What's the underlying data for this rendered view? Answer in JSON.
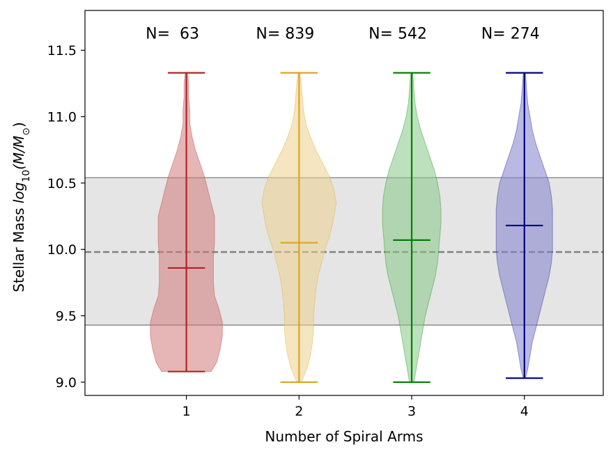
{
  "chart_data": {
    "type": "violin",
    "xlabel": "Number of Spiral Arms",
    "ylabel_prefix": "Stellar Mass ",
    "ylabel_math": "log",
    "ylabel_sub": "10",
    "ylabel_suffix": "(M/M",
    "ylabel_sun": "⊙",
    "ylabel_close": ")",
    "xlim": [
      0.1,
      4.7
    ],
    "ylim": [
      8.9,
      11.8
    ],
    "xticks": [
      1,
      2,
      3,
      4
    ],
    "xtick_labels": [
      "1",
      "2",
      "3",
      "4"
    ],
    "yticks": [
      9.0,
      9.5,
      10.0,
      10.5,
      11.0,
      11.5
    ],
    "ytick_labels": [
      "9.0",
      "9.5",
      "10.0",
      "10.5",
      "11.0",
      "11.5"
    ],
    "reference_line": 9.98,
    "reference_band": [
      9.43,
      10.54
    ],
    "band_color": "#e5e5e5",
    "ref_line_color": "#808080",
    "n_label_y": 11.63,
    "violins": [
      {
        "position": 1,
        "n_label": "N=  63",
        "color": "#b22222",
        "fill": "#d27a7a",
        "min": 9.08,
        "max": 11.33,
        "mean": 9.86,
        "profile": [
          [
            9.08,
            0.22
          ],
          [
            9.15,
            0.27
          ],
          [
            9.25,
            0.3
          ],
          [
            9.35,
            0.32
          ],
          [
            9.45,
            0.32
          ],
          [
            9.55,
            0.29
          ],
          [
            9.65,
            0.25
          ],
          [
            9.75,
            0.24
          ],
          [
            9.85,
            0.24
          ],
          [
            9.95,
            0.24
          ],
          [
            10.05,
            0.25
          ],
          [
            10.15,
            0.25
          ],
          [
            10.25,
            0.25
          ],
          [
            10.35,
            0.22
          ],
          [
            10.45,
            0.19
          ],
          [
            10.55,
            0.16
          ],
          [
            10.65,
            0.12
          ],
          [
            10.75,
            0.08
          ],
          [
            10.85,
            0.05
          ],
          [
            10.95,
            0.03
          ],
          [
            11.05,
            0.03
          ],
          [
            11.15,
            0.02
          ],
          [
            11.25,
            0.02
          ],
          [
            11.33,
            0.01
          ]
        ]
      },
      {
        "position": 2,
        "n_label": "N= 839",
        "color": "#daa520",
        "fill": "#ecd08c",
        "min": 9.0,
        "max": 11.33,
        "mean": 10.05,
        "profile": [
          [
            9.0,
            0.02
          ],
          [
            9.1,
            0.07
          ],
          [
            9.2,
            0.1
          ],
          [
            9.3,
            0.12
          ],
          [
            9.4,
            0.13
          ],
          [
            9.5,
            0.13
          ],
          [
            9.6,
            0.14
          ],
          [
            9.7,
            0.15
          ],
          [
            9.8,
            0.17
          ],
          [
            9.9,
            0.2
          ],
          [
            10.0,
            0.23
          ],
          [
            10.1,
            0.27
          ],
          [
            10.2,
            0.3
          ],
          [
            10.3,
            0.32
          ],
          [
            10.35,
            0.33
          ],
          [
            10.45,
            0.31
          ],
          [
            10.55,
            0.27
          ],
          [
            10.65,
            0.21
          ],
          [
            10.75,
            0.15
          ],
          [
            10.85,
            0.1
          ],
          [
            10.95,
            0.06
          ],
          [
            11.05,
            0.04
          ],
          [
            11.15,
            0.03
          ],
          [
            11.25,
            0.02
          ],
          [
            11.33,
            0.01
          ]
        ]
      },
      {
        "position": 3,
        "n_label": "N= 542",
        "color": "#008000",
        "fill": "#85c885",
        "min": 9.0,
        "max": 11.33,
        "mean": 10.07,
        "profile": [
          [
            9.0,
            0.02
          ],
          [
            9.1,
            0.04
          ],
          [
            9.2,
            0.06
          ],
          [
            9.3,
            0.08
          ],
          [
            9.4,
            0.1
          ],
          [
            9.5,
            0.12
          ],
          [
            9.6,
            0.15
          ],
          [
            9.7,
            0.18
          ],
          [
            9.8,
            0.21
          ],
          [
            9.9,
            0.23
          ],
          [
            10.0,
            0.24
          ],
          [
            10.1,
            0.25
          ],
          [
            10.2,
            0.26
          ],
          [
            10.3,
            0.26
          ],
          [
            10.4,
            0.25
          ],
          [
            10.5,
            0.23
          ],
          [
            10.6,
            0.2
          ],
          [
            10.7,
            0.16
          ],
          [
            10.8,
            0.12
          ],
          [
            10.9,
            0.08
          ],
          [
            11.0,
            0.05
          ],
          [
            11.1,
            0.03
          ],
          [
            11.2,
            0.02
          ],
          [
            11.33,
            0.01
          ]
        ]
      },
      {
        "position": 4,
        "n_label": "N= 274",
        "color": "#000080",
        "fill": "#8080cc",
        "min": 9.03,
        "max": 11.33,
        "mean": 10.18,
        "profile": [
          [
            9.03,
            0.01
          ],
          [
            9.1,
            0.03
          ],
          [
            9.2,
            0.05
          ],
          [
            9.3,
            0.07
          ],
          [
            9.4,
            0.1
          ],
          [
            9.5,
            0.13
          ],
          [
            9.6,
            0.16
          ],
          [
            9.7,
            0.19
          ],
          [
            9.8,
            0.22
          ],
          [
            9.9,
            0.24
          ],
          [
            10.0,
            0.25
          ],
          [
            10.1,
            0.25
          ],
          [
            10.2,
            0.25
          ],
          [
            10.3,
            0.25
          ],
          [
            10.4,
            0.24
          ],
          [
            10.5,
            0.22
          ],
          [
            10.6,
            0.18
          ],
          [
            10.7,
            0.14
          ],
          [
            10.8,
            0.1
          ],
          [
            10.9,
            0.07
          ],
          [
            11.0,
            0.05
          ],
          [
            11.1,
            0.03
          ],
          [
            11.2,
            0.02
          ],
          [
            11.33,
            0.01
          ]
        ]
      }
    ]
  }
}
